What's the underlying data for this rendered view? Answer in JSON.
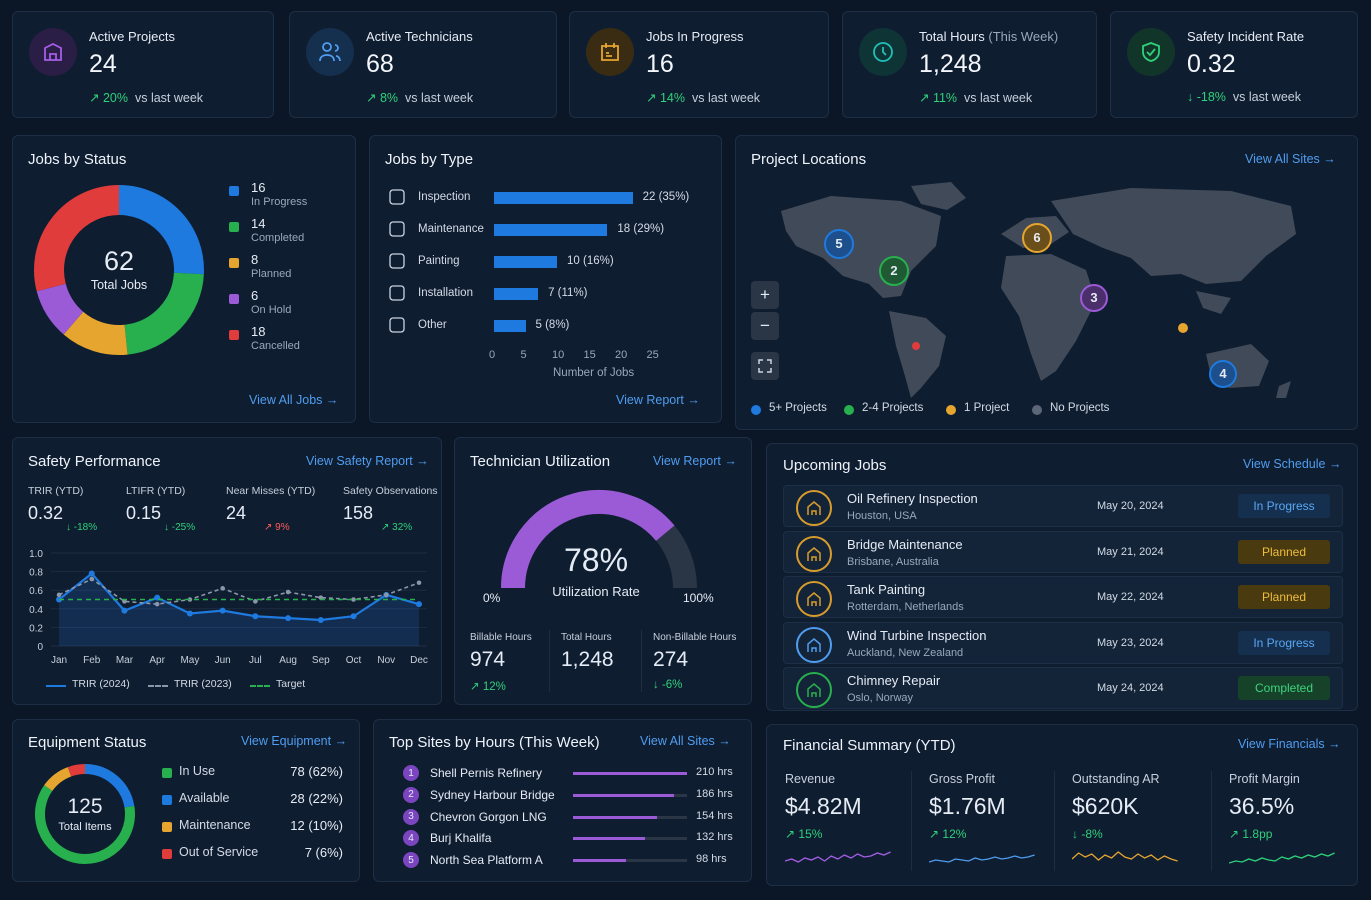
{
  "kpis": [
    {
      "label": "Active Projects",
      "label_extra": "",
      "value": "24",
      "delta": "20%",
      "delta_text": "vs last week",
      "arrow": "↗",
      "icon": "projects-icon",
      "color": "#a55ee8",
      "bg": "#2a1d46"
    },
    {
      "label": "Active Technicians",
      "label_extra": "",
      "value": "68",
      "delta": "8%",
      "delta_text": "vs last week",
      "arrow": "↗",
      "icon": "technicians-icon",
      "color": "#4f9df0",
      "bg": "#15304f"
    },
    {
      "label": "Jobs In Progress",
      "label_extra": "",
      "value": "16",
      "delta": "14%",
      "delta_text": "vs last week",
      "arrow": "↗",
      "icon": "jobs-icon",
      "color": "#e5a52f",
      "bg": "#3a2c12"
    },
    {
      "label": "Total Hours",
      "label_extra": " (This Week)",
      "value": "1,248",
      "delta": "11%",
      "delta_text": "vs last week",
      "arrow": "↗",
      "icon": "clock-icon",
      "color": "#20c0b8",
      "bg": "#0f3436"
    },
    {
      "label": "Safety Incident Rate",
      "label_extra": "",
      "value": "0.32",
      "delta": "-18%",
      "delta_text": "vs last week",
      "arrow": "↓",
      "icon": "shield-icon",
      "color": "#2fd17a",
      "bg": "#12352a"
    }
  ],
  "jobs_status": {
    "title": "Jobs by Status",
    "total": "62",
    "total_label": "Total Jobs",
    "link": "View All Jobs",
    "items": [
      {
        "value": "16",
        "label": "In Progress",
        "color": "#1f7ae0",
        "n": 16
      },
      {
        "value": "14",
        "label": "Completed",
        "color": "#27b04d",
        "n": 14
      },
      {
        "value": "8",
        "label": "Planned",
        "color": "#e5a52f",
        "n": 8
      },
      {
        "value": "6",
        "label": "On Hold",
        "color": "#9b5ad6",
        "n": 6
      },
      {
        "value": "18",
        "label": "Cancelled",
        "color": "#e03c3c",
        "n": 18
      }
    ]
  },
  "jobs_type": {
    "title": "Jobs by Type",
    "xlabel": "Number of Jobs",
    "link": "View Report",
    "ticks": [
      "0",
      "5",
      "10",
      "15",
      "20",
      "25"
    ],
    "bars": [
      {
        "label": "Inspection",
        "value": 22,
        "text": "22 (35%)",
        "icon": "inspection-icon"
      },
      {
        "label": "Maintenance",
        "value": 18,
        "text": "18 (29%)",
        "icon": "maintenance-icon"
      },
      {
        "label": "Painting",
        "value": 10,
        "text": "10 (16%)",
        "icon": "painting-icon"
      },
      {
        "label": "Installation",
        "value": 7,
        "text": "7 (11%)",
        "icon": "installation-icon"
      },
      {
        "label": "Other",
        "value": 5,
        "text": "5 (8%)",
        "icon": "gear-icon"
      }
    ]
  },
  "locations": {
    "title": "Project Locations",
    "link": "View All Sites",
    "markers": [
      "5",
      "2",
      "6",
      "3",
      "4"
    ],
    "legend": [
      {
        "label": "5+ Projects",
        "color": "#1f7ae0"
      },
      {
        "label": "2-4 Projects",
        "color": "#27b04d"
      },
      {
        "label": "1 Project",
        "color": "#e5a52f"
      },
      {
        "label": "No Projects",
        "color": "#5c6676"
      }
    ]
  },
  "safety": {
    "title": "Safety Performance",
    "link": "View Safety Report",
    "metrics": [
      {
        "label": "TRIR (YTD)",
        "value": "0.32",
        "delta": "↓ -18%",
        "cls": "down"
      },
      {
        "label": "LTIFR (YTD)",
        "value": "0.15",
        "delta": "↓ -25%",
        "cls": "down"
      },
      {
        "label": "Near Misses (YTD)",
        "value": "24",
        "delta": "↗ 9%",
        "cls": "bad"
      },
      {
        "label": "Safety Observations",
        "value": "158",
        "delta": "↗ 32%",
        "cls": "up"
      }
    ],
    "yticks": [
      "1.0",
      "0.8",
      "0.6",
      "0.4",
      "0.2",
      "0"
    ],
    "months": [
      "Jan",
      "Feb",
      "Mar",
      "Apr",
      "May",
      "Jun",
      "Jul",
      "Aug",
      "Sep",
      "Oct",
      "Nov",
      "Dec"
    ],
    "legend": [
      "TRIR (2024)",
      "TRIR (2023)",
      "Target"
    ]
  },
  "chart_data": {
    "type": "line",
    "x": [
      "Jan",
      "Feb",
      "Mar",
      "Apr",
      "May",
      "Jun",
      "Jul",
      "Aug",
      "Sep",
      "Oct",
      "Nov",
      "Dec"
    ],
    "ylim": [
      0,
      1.0
    ],
    "series": [
      {
        "name": "TRIR (2024)",
        "values": [
          0.5,
          0.78,
          0.38,
          0.52,
          0.35,
          0.38,
          0.32,
          0.3,
          0.28,
          0.32,
          0.55,
          0.45
        ]
      },
      {
        "name": "TRIR (2023)",
        "values": [
          0.55,
          0.72,
          0.48,
          0.45,
          0.5,
          0.62,
          0.48,
          0.58,
          0.52,
          0.5,
          0.55,
          0.68
        ]
      },
      {
        "name": "Target",
        "values": [
          0.5,
          0.5,
          0.5,
          0.5,
          0.5,
          0.5,
          0.5,
          0.5,
          0.5,
          0.5,
          0.5,
          0.5
        ]
      }
    ],
    "colors": [
      "#1f7ae0",
      "#8b97a8",
      "#27b04d"
    ]
  },
  "utilization": {
    "title": "Technician Utilization",
    "link": "View Report",
    "value": "78%",
    "fraction": 0.78,
    "label": "Utilization Rate",
    "min": "0%",
    "max": "100%",
    "stats": [
      {
        "label": "Billable Hours",
        "value": "974",
        "delta": "↗ 12%"
      },
      {
        "label": "Total Hours",
        "value": "1,248",
        "delta": ""
      },
      {
        "label": "Non-Billable Hours",
        "value": "274",
        "delta": "↓ -6%"
      }
    ]
  },
  "upcoming": {
    "title": "Upcoming Jobs",
    "link": "View Schedule",
    "jobs": [
      {
        "name": "Oil Refinery Inspection",
        "loc": "Houston, USA",
        "date": "May 20, 2024",
        "status": "In Progress",
        "type": "progress",
        "icon": "refinery-icon",
        "ring": "#d79c2c"
      },
      {
        "name": "Bridge Maintenance",
        "loc": "Brisbane, Australia",
        "date": "May 21, 2024",
        "status": "Planned",
        "type": "planned",
        "icon": "bridge-icon",
        "ring": "#d79c2c"
      },
      {
        "name": "Tank Painting",
        "loc": "Rotterdam, Netherlands",
        "date": "May 22, 2024",
        "status": "Planned",
        "type": "planned",
        "icon": "tank-icon",
        "ring": "#d79c2c"
      },
      {
        "name": "Wind Turbine Inspection",
        "loc": "Auckland, New Zealand",
        "date": "May 23, 2024",
        "status": "In Progress",
        "type": "progress",
        "icon": "wind-turbine-icon",
        "ring": "#4f9df0"
      },
      {
        "name": "Chimney Repair",
        "loc": "Oslo, Norway",
        "date": "May 24, 2024",
        "status": "Completed",
        "type": "completed",
        "icon": "chimney-icon",
        "ring": "#27b04d"
      }
    ]
  },
  "equipment": {
    "title": "Equipment Status",
    "link": "View Equipment",
    "total": "125",
    "total_label": "Total Items",
    "items": [
      {
        "label": "In Use",
        "value": "78 (62%)",
        "n": 78,
        "color": "#27b04d"
      },
      {
        "label": "Available",
        "value": "28 (22%)",
        "n": 28,
        "color": "#1f7ae0"
      },
      {
        "label": "Maintenance",
        "value": "12 (10%)",
        "n": 12,
        "color": "#e5a52f"
      },
      {
        "label": "Out of Service",
        "value": "7 (6%)",
        "n": 7,
        "color": "#e03c3c"
      }
    ]
  },
  "top_sites": {
    "title": "Top Sites by Hours (This Week)",
    "link": "View All Sites",
    "sites": [
      {
        "rank": "1",
        "name": "Shell Pernis Refinery",
        "hours": "210 hrs",
        "n": 210
      },
      {
        "rank": "2",
        "name": "Sydney Harbour Bridge",
        "hours": "186 hrs",
        "n": 186
      },
      {
        "rank": "3",
        "name": "Chevron Gorgon LNG",
        "hours": "154 hrs",
        "n": 154
      },
      {
        "rank": "4",
        "name": "Burj Khalifa",
        "hours": "132 hrs",
        "n": 132
      },
      {
        "rank": "5",
        "name": "North Sea Platform A",
        "hours": "98 hrs",
        "n": 98
      }
    ]
  },
  "financial": {
    "title": "Financial Summary (YTD)",
    "link": "View Financials",
    "items": [
      {
        "label": "Revenue",
        "value": "$4.82M",
        "delta": "↗ 15%",
        "color": "#a55ee8"
      },
      {
        "label": "Gross Profit",
        "value": "$1.76M",
        "delta": "↗ 12%",
        "color": "#4f9df0"
      },
      {
        "label": "Outstanding AR",
        "value": "$620K",
        "delta": "↓ -8%",
        "color": "#e5a52f"
      },
      {
        "label": "Profit Margin",
        "value": "36.5%",
        "delta": "↗ 1.8pp",
        "color": "#2fd17a"
      }
    ]
  }
}
